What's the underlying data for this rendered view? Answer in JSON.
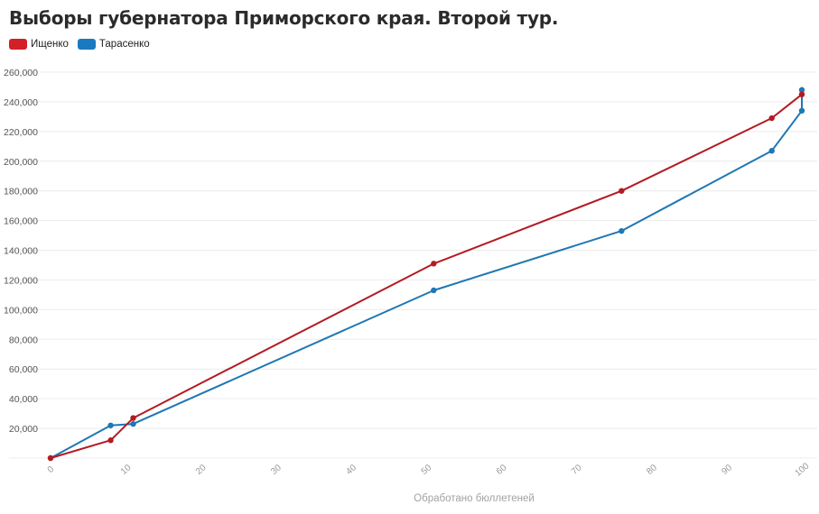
{
  "chart_data": {
    "type": "line",
    "title": "Выборы губернатора Приморского края. Второй тур.",
    "xlabel": "Обработано бюллетеней",
    "ylabel": "",
    "xlim": [
      0,
      100
    ],
    "ylim": [
      0,
      260000
    ],
    "x_ticks": [
      "0",
      "10",
      "20",
      "30",
      "40",
      "50",
      "60",
      "70",
      "80",
      "90",
      "100"
    ],
    "y_ticks": [
      "20,000",
      "40,000",
      "60,000",
      "80,000",
      "100,000",
      "120,000",
      "140,000",
      "160,000",
      "180,000",
      "200,000",
      "220,000",
      "240,000",
      "260,000"
    ],
    "grid": true,
    "legend_position": "top-left",
    "series": [
      {
        "name": "Ищенко",
        "color": "#b31b22",
        "points": [
          [
            0,
            0
          ],
          [
            8,
            12000
          ],
          [
            11,
            27000
          ],
          [
            51,
            131000
          ],
          [
            76,
            180000
          ],
          [
            96,
            229000
          ],
          [
            100,
            245000
          ]
        ]
      },
      {
        "name": "Тарасенко",
        "color": "#1f77b4",
        "points": [
          [
            0,
            0
          ],
          [
            8,
            22000
          ],
          [
            11,
            23000
          ],
          [
            51,
            113000
          ],
          [
            76,
            153000
          ],
          [
            96,
            207000
          ],
          [
            100,
            234000
          ],
          [
            100,
            248000
          ]
        ]
      }
    ]
  },
  "legend_swatch_colors": [
    "#d31f26",
    "#1a7abf"
  ]
}
